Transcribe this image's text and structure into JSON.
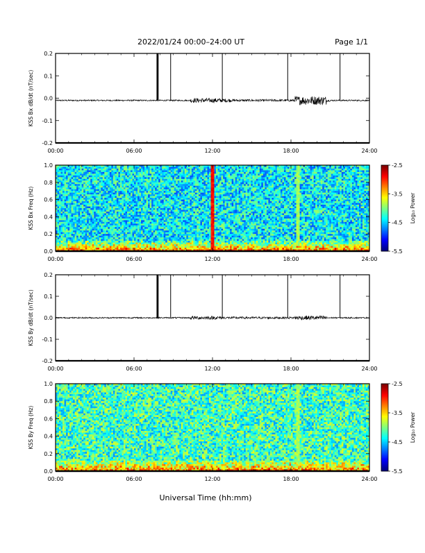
{
  "header": {
    "title": "2022/01/24  00:00–24:00 UT",
    "page_label": "Page 1/1"
  },
  "footer": {
    "xlabel": "Universal Time (hh:mm)"
  },
  "chart_data": [
    {
      "type": "line",
      "ylabel": "KSS Bx dB/dt (nT/sec)",
      "xlim": [
        0,
        24
      ],
      "ylim": [
        -0.2,
        0.2
      ],
      "xticks": [
        "00:00",
        "06:00",
        "12:00",
        "18:00",
        "24:00"
      ],
      "yticks": [
        "0.2",
        "0.1",
        "0.0",
        "-0.1",
        "-0.2"
      ],
      "baseline": -0.01,
      "spikes": [
        {
          "t": 7.75,
          "value": 0.2
        },
        {
          "t": 7.8,
          "value": 0.2
        },
        {
          "t": 7.85,
          "value": 0.2
        },
        {
          "t": 8.8,
          "value": 0.2
        },
        {
          "t": 12.75,
          "value": 0.2
        },
        {
          "t": 17.75,
          "value": 0.2
        },
        {
          "t": 21.75,
          "value": 0.2
        }
      ],
      "bursts": [
        {
          "t": 11.5,
          "amplitude": 0.01
        },
        {
          "t": 12.2,
          "amplitude": 0.008
        },
        {
          "t": 19.5,
          "amplitude": 0.02
        }
      ]
    },
    {
      "type": "heatmap",
      "ylabel": "KSS Bx Freq (Hz)",
      "xlim": [
        0,
        24
      ],
      "ylim": [
        0,
        1
      ],
      "xticks": [
        "00:00",
        "06:00",
        "12:00",
        "18:00",
        "24:00"
      ],
      "yticks": [
        "1.0",
        "0.8",
        "0.6",
        "0.4",
        "0.2",
        "0.0"
      ],
      "colorbar": {
        "label": "Log₁₀ Power",
        "range": [
          -5.5,
          -2.5
        ],
        "ticks": [
          "-2.5",
          "-3.5",
          "-4.5",
          "-5.5"
        ]
      },
      "typical_log_power": -4.4,
      "low_freq_log_power": -3.3,
      "features": [
        {
          "t": 18.5,
          "note_log_power": -3.9
        },
        {
          "t": 12.0,
          "note_log_power": -2.9
        }
      ]
    },
    {
      "type": "line",
      "ylabel": "KSS By dB/dt (nT/sec)",
      "xlim": [
        0,
        24
      ],
      "ylim": [
        -0.2,
        0.2
      ],
      "xticks": [
        "00:00",
        "06:00",
        "12:00",
        "18:00",
        "24:00"
      ],
      "yticks": [
        "0.2",
        "0.1",
        "0.0",
        "-0.1",
        "-0.2"
      ],
      "baseline": 0.0,
      "spikes": [
        {
          "t": 7.75,
          "value": 0.2
        },
        {
          "t": 7.8,
          "value": 0.2
        },
        {
          "t": 7.85,
          "value": 0.2
        },
        {
          "t": 8.8,
          "value": 0.2
        },
        {
          "t": 12.75,
          "value": 0.2
        },
        {
          "t": 17.75,
          "value": 0.2
        },
        {
          "t": 21.75,
          "value": 0.2
        }
      ],
      "bursts": [
        {
          "t": 11.5,
          "amplitude": 0.008
        },
        {
          "t": 19.5,
          "amplitude": 0.01
        }
      ]
    },
    {
      "type": "heatmap",
      "ylabel": "KSS By Freq (Hz)",
      "xlim": [
        0,
        24
      ],
      "ylim": [
        0,
        1
      ],
      "xticks": [
        "00:00",
        "06:00",
        "12:00",
        "18:00",
        "24:00"
      ],
      "yticks": [
        "1.0",
        "0.8",
        "0.6",
        "0.4",
        "0.2",
        "0.0"
      ],
      "colorbar": {
        "label": "Log₁₀ Power",
        "range": [
          -5.5,
          -2.5
        ],
        "ticks": [
          "-2.5",
          "-3.5",
          "-4.5",
          "-5.5"
        ]
      },
      "typical_log_power": -4.2,
      "low_freq_log_power": -3.4,
      "features": [
        {
          "t": 18.5,
          "note_log_power": -3.9
        }
      ]
    }
  ]
}
